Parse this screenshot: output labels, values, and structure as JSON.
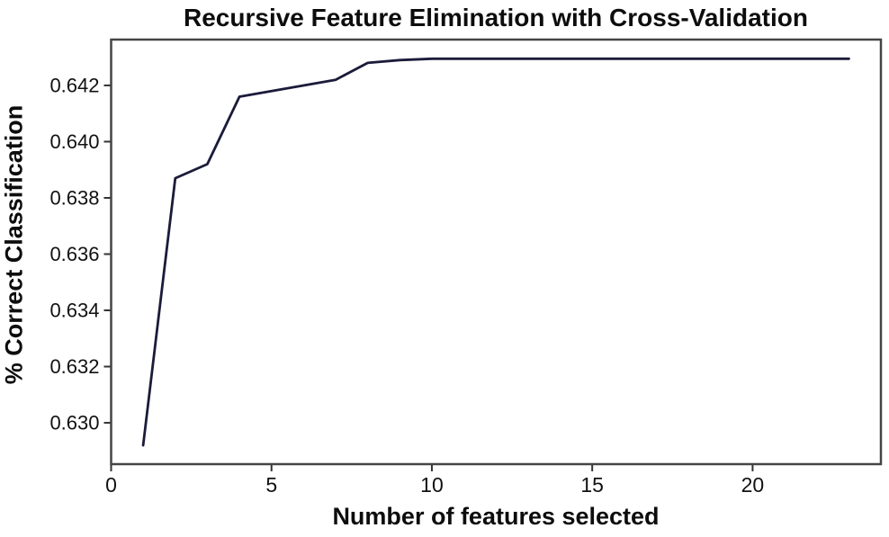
{
  "chart_data": {
    "type": "line",
    "title": "Recursive Feature Elimination with Cross-Validation",
    "xlabel": "Number of features selected",
    "ylabel": "% Correct Classification",
    "x": [
      1,
      2,
      3,
      4,
      5,
      6,
      7,
      8,
      9,
      10,
      11,
      12,
      13,
      14,
      15,
      16,
      17,
      18,
      19,
      20,
      21,
      22,
      23
    ],
    "y": [
      0.6292,
      0.6387,
      0.6392,
      0.6416,
      0.6418,
      0.642,
      0.6422,
      0.6428,
      0.6429,
      0.64295,
      0.64295,
      0.64295,
      0.64295,
      0.64295,
      0.64295,
      0.64295,
      0.64295,
      0.64295,
      0.64295,
      0.64295,
      0.64295,
      0.64295,
      0.64295
    ],
    "xlim": [
      0,
      24
    ],
    "ylim": [
      0.62853,
      0.64363
    ],
    "xticks": [
      0,
      5,
      10,
      15,
      20
    ],
    "xtick_labels": [
      "0",
      "5",
      "10",
      "15",
      "20"
    ],
    "yticks": [
      0.63,
      0.632,
      0.634,
      0.636,
      0.638,
      0.64,
      0.642
    ],
    "ytick_labels": [
      "0.630",
      "0.632",
      "0.634",
      "0.636",
      "0.638",
      "0.640",
      "0.642"
    ],
    "grid": false,
    "legend": null,
    "line_color": "#1b1b3a",
    "frame_color": "#454545",
    "tick_color": "#333333",
    "background_color": "#ffffff"
  }
}
